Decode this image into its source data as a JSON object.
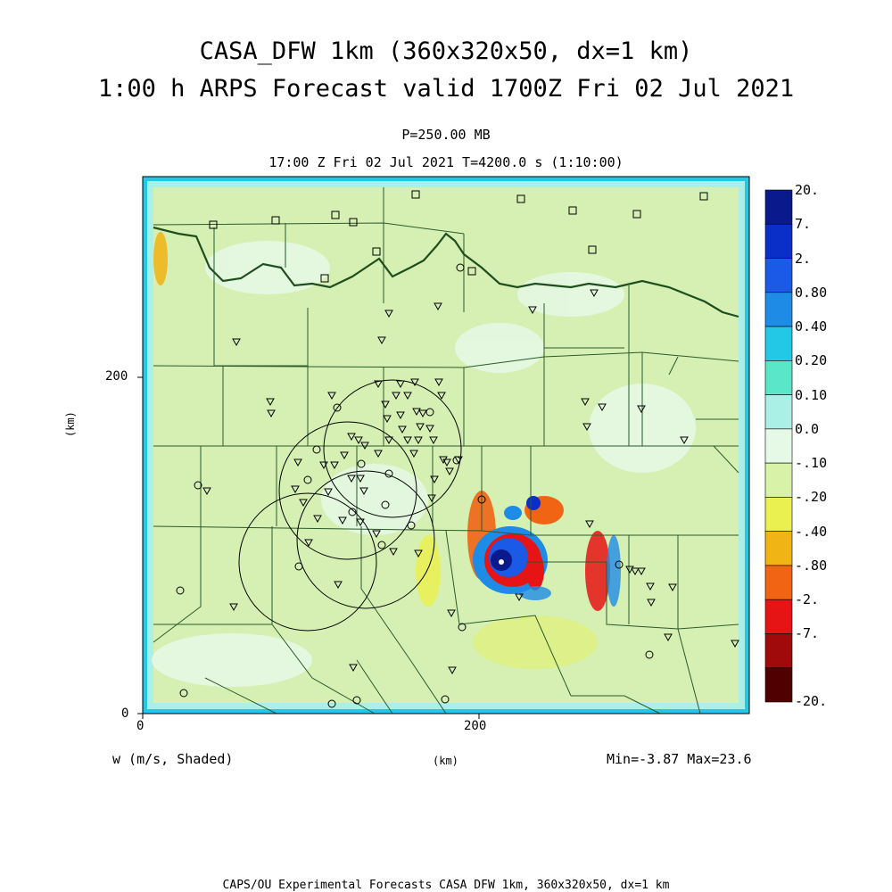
{
  "title_line1": "CASA_DFW 1km (360x320x50, dx=1 km)",
  "title_line2": "1:00 h ARPS Forecast valid 1700Z Fri 02 Jul 2021",
  "pressure_level": "P=250.00 MB",
  "valid_line": "17:00 Z Fri 02 Jul 2021    T=4200.0 s (1:10:00)",
  "axis": {
    "x_ticks": [
      "0",
      "200"
    ],
    "y_ticks": [
      "0",
      "200"
    ],
    "y_label": "(km)",
    "x_label": "(km)"
  },
  "field_label": "w (m/s, Shaded)",
  "minmax_label": "Min=-3.87 Max=23.6",
  "footer": "CAPS/OU Experimental Forecasts  CASA DFW 1km, 360x320x50, dx=1 km",
  "colorbar": [
    {
      "label": "20.",
      "color": "#0a1a8c"
    },
    {
      "label": "7.",
      "color": "#0a2fc8"
    },
    {
      "label": "2.",
      "color": "#1a5ae6"
    },
    {
      "label": "0.80",
      "color": "#1e8ce6"
    },
    {
      "label": "0.40",
      "color": "#22c8e6"
    },
    {
      "label": "0.20",
      "color": "#5ae6c8"
    },
    {
      "label": "0.10",
      "color": "#aaf0e6"
    },
    {
      "label": "0.0",
      "color": "#e6f8e6"
    },
    {
      "label": "-.10",
      "color": "#d8f2a8"
    },
    {
      "label": "-.20",
      "color": "#eaf050"
    },
    {
      "label": "-.40",
      "color": "#f0b414"
    },
    {
      "label": "-.80",
      "color": "#f06414"
    },
    {
      "label": "-2.",
      "color": "#e61414"
    },
    {
      "label": "-7.",
      "color": "#a00a0a"
    },
    {
      "label": "-20.",
      "color": "#500000"
    }
  ],
  "colors": {
    "field_background": "#d6f0b4",
    "domain_edge": "#22c8e6",
    "river": "#1e4d1e"
  }
}
